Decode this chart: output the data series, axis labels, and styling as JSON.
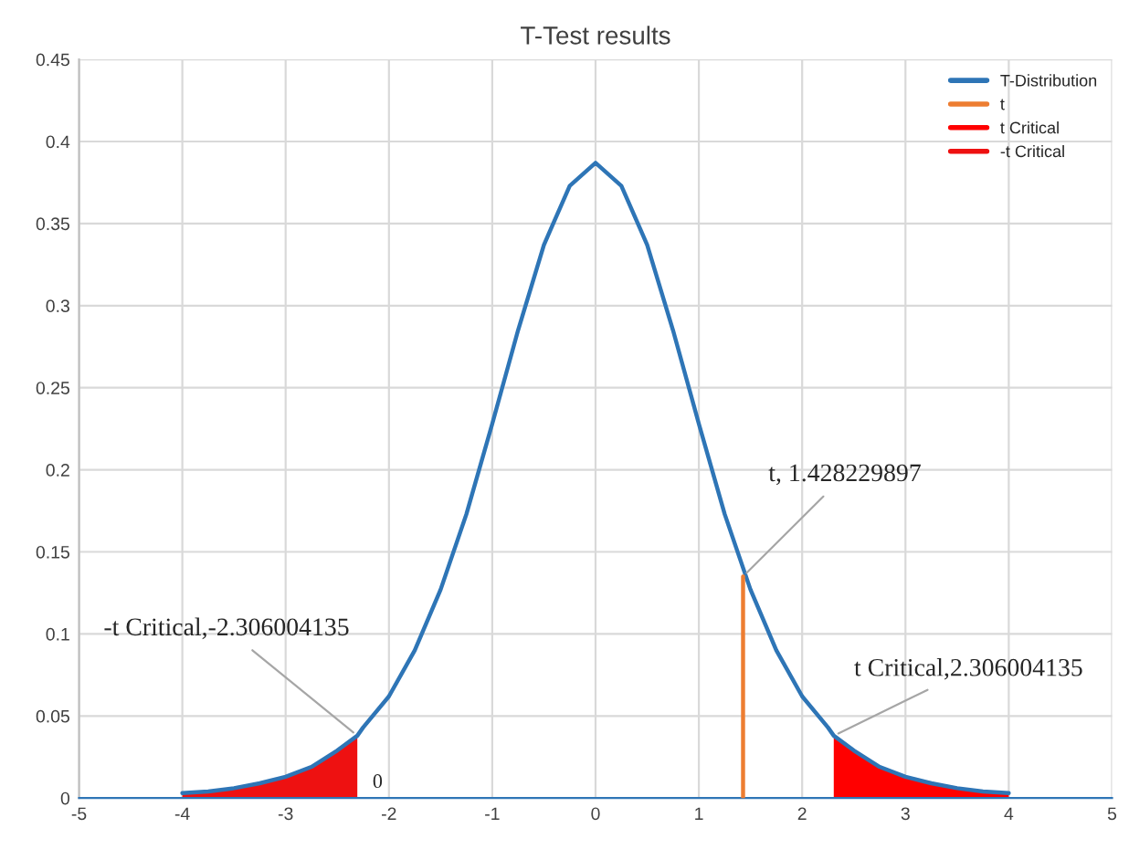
{
  "chart_data": {
    "type": "line",
    "title": "T-Test results",
    "series": [
      {
        "name": "T-Distribution",
        "color": "#2e75b6",
        "x": [
          -4,
          -3.75,
          -3.5,
          -3.25,
          -3,
          -2.75,
          -2.5,
          -2.306,
          -2.25,
          -2,
          -1.75,
          -1.5,
          -1.25,
          -1,
          -0.75,
          -0.5,
          -0.25,
          0,
          0.25,
          0.5,
          0.75,
          1,
          1.25,
          1.5,
          1.75,
          2,
          2.25,
          2.306,
          2.5,
          2.75,
          3,
          3.25,
          3.5,
          3.75,
          4
        ],
        "values": [
          0.003,
          0.004,
          0.006,
          0.009,
          0.013,
          0.019,
          0.029,
          0.038,
          0.043,
          0.062,
          0.09,
          0.127,
          0.173,
          0.228,
          0.285,
          0.337,
          0.373,
          0.387,
          0.373,
          0.337,
          0.285,
          0.228,
          0.173,
          0.127,
          0.09,
          0.062,
          0.043,
          0.038,
          0.029,
          0.019,
          0.013,
          0.009,
          0.006,
          0.004,
          0.003
        ]
      },
      {
        "name": "t",
        "color": "#ed7d31",
        "x": [
          1.428,
          1.428
        ],
        "values": [
          0,
          0.135
        ]
      },
      {
        "name": "t Critical",
        "color": "#ff0000",
        "type": "area",
        "x": [
          2.306,
          2.5,
          2.75,
          3,
          3.25,
          3.5,
          3.75,
          4
        ],
        "values": [
          0.038,
          0.029,
          0.019,
          0.013,
          0.009,
          0.006,
          0.004,
          0.003
        ]
      },
      {
        "name": "-t Critical",
        "color": "#ee1111",
        "type": "area",
        "x": [
          -4,
          -3.75,
          -3.5,
          -3.25,
          -3,
          -2.75,
          -2.5,
          -2.306
        ],
        "values": [
          0.003,
          0.004,
          0.006,
          0.009,
          0.013,
          0.019,
          0.029,
          0.038
        ]
      }
    ],
    "annotations": [
      {
        "text": "t, 1.428229897",
        "x": 1.428,
        "y": 0.135
      },
      {
        "text": "t Critical,2.306004135",
        "x": 2.306,
        "y": 0.038
      },
      {
        "text": "-t Critical,-2.306004135",
        "x": -2.306,
        "y": 0.038
      },
      {
        "text": "0",
        "x": -2.306,
        "y": 0
      }
    ],
    "xlim": [
      -5,
      5
    ],
    "xticks": [
      -5,
      -4,
      -3,
      -2,
      -1,
      0,
      1,
      2,
      3,
      4,
      5
    ],
    "ylim": [
      0,
      0.45
    ],
    "yticks": [
      0,
      0.05,
      0.1,
      0.15,
      0.2,
      0.25,
      0.3,
      0.35,
      0.4,
      0.45
    ],
    "grid": true,
    "legend": "top right"
  }
}
